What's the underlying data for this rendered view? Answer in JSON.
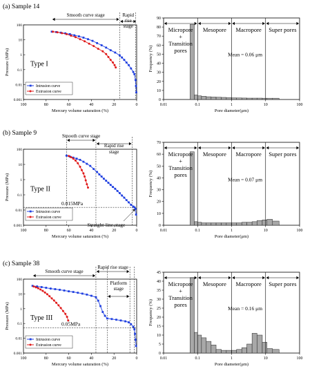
{
  "chart_data": [
    {
      "type": "line",
      "panel_label": "(a) Sample 14",
      "xlabel": "Mercury volume saturation (%)",
      "ylabel": "Pressure (MPa)",
      "xlim": [
        100,
        0
      ],
      "ylim": [
        0.001,
        100
      ],
      "yscale": "log",
      "x_ticks": [
        "100",
        "80",
        "60",
        "40",
        "20",
        "0"
      ],
      "y_ticks": [
        "0.001",
        "0.01",
        "0.1",
        "1",
        "10",
        "100"
      ],
      "type_label": "Type I",
      "legend_position": "bottom-left",
      "stage_labels": [
        {
          "text": "Smooth curve stage",
          "from": 75,
          "to": 15
        },
        {
          "text": "Rapid",
          "from": 15,
          "to": 0
        },
        {
          "text": "rise",
          "from": 15,
          "to": 0
        },
        {
          "text": "stage",
          "from": 15,
          "to": 0
        }
      ],
      "stage_lines": [
        15,
        1
      ],
      "series": [
        {
          "name": "Intrusion curve",
          "color": "#1f3fe0",
          "marker": "square",
          "x": [
            75,
            71,
            67,
            63,
            59,
            55,
            51,
            47,
            43,
            39,
            35,
            31,
            27,
            23,
            19,
            15,
            13,
            11,
            9,
            7,
            5,
            3,
            2,
            1,
            0.6,
            0.3
          ],
          "y": [
            35,
            33,
            30,
            27,
            24,
            20,
            17,
            14,
            11,
            8.5,
            6,
            4.3,
            3,
            2,
            1.4,
            0.9,
            0.65,
            0.45,
            0.3,
            0.2,
            0.12,
            0.07,
            0.05,
            0.02,
            0.008,
            0.003
          ]
        },
        {
          "name": "Extrusion curve",
          "color": "#e01a1a",
          "marker": "circle",
          "x": [
            74,
            70,
            66,
            62,
            58,
            54,
            50,
            46,
            42,
            38,
            34,
            30,
            27,
            25,
            23,
            21,
            19.5,
            18.5
          ],
          "y": [
            35,
            32,
            28,
            24,
            19,
            15,
            11,
            8,
            5.5,
            3.8,
            2.5,
            1.7,
            1.1,
            0.7,
            0.45,
            0.3,
            0.2,
            0.14
          ]
        }
      ]
    },
    {
      "type": "bar",
      "xlabel": "Pore diameter(μm)",
      "ylabel": "Frequency (%)",
      "xscale": "log",
      "xlim": [
        0.01,
        100
      ],
      "ylim": [
        0,
        90
      ],
      "x_ticks": [
        "0.01",
        "0.1",
        "1",
        "10",
        "100"
      ],
      "y_ticks": [
        "0",
        "10",
        "20",
        "30",
        "40",
        "50",
        "60",
        "70",
        "80",
        "90"
      ],
      "bin_edges": [
        0.06,
        0.08,
        0.1,
        0.13,
        0.18,
        0.25,
        0.35,
        0.5,
        0.7,
        1,
        1.4,
        2,
        2.8,
        4,
        5.6,
        8,
        11,
        16,
        25
      ],
      "values": [
        83,
        5,
        4,
        3.5,
        3,
        2.7,
        2.5,
        2.3,
        2,
        1.8,
        1.7,
        1.6,
        1.5,
        1.5,
        1.5,
        1.4,
        1.4,
        1.4
      ],
      "regions": [
        {
          "lines": [
            "Micropore",
            "+",
            "Transition",
            "pores"
          ],
          "from": 0.01,
          "to": 0.1
        },
        {
          "lines": [
            "Mesopore"
          ],
          "from": 0.1,
          "to": 1
        },
        {
          "lines": [
            "Macropore"
          ],
          "from": 1,
          "to": 10
        },
        {
          "lines": [
            "Super pores"
          ],
          "from": 10,
          "to": 100
        }
      ],
      "mean_label": "Mean = 0.06 μm"
    },
    {
      "type": "line",
      "panel_label": "(b) Sample 9",
      "xlabel": "Mercury volume saturation (%)",
      "ylabel": "Pressure (MPa)",
      "xlim": [
        100,
        0
      ],
      "ylim": [
        0.001,
        100
      ],
      "yscale": "log",
      "x_ticks": [
        "100",
        "80",
        "60",
        "40",
        "20",
        "0"
      ],
      "y_ticks": [
        "0.001",
        "0.01",
        "0.1",
        "1",
        "10",
        "100"
      ],
      "type_label": "Type II",
      "legend_position": "bottom-left",
      "stage_labels": [
        {
          "text": "Smooth curve stage",
          "from": 62,
          "to": 36
        },
        {
          "text": "Rapid rise",
          "from": 36,
          "to": 4
        },
        {
          "text": "stage",
          "from": 36,
          "to": 4
        }
      ],
      "stage_lines": [
        62,
        36,
        4
      ],
      "threshold": {
        "y": 0.015,
        "label": "0.015MPa"
      },
      "annotation": {
        "text": "Straight-line stage",
        "target": [
          1,
          0.012
        ]
      },
      "series": [
        {
          "name": "Intrusion curve",
          "color": "#1f3fe0",
          "marker": "square",
          "x": [
            62,
            59,
            56,
            53,
            50,
            47,
            44,
            41,
            38,
            35,
            33,
            31,
            29,
            27,
            25,
            23,
            21,
            19,
            17,
            15,
            13,
            11,
            9,
            7,
            5,
            3,
            2,
            1,
            0.5
          ],
          "y": [
            38,
            33,
            28,
            24,
            20,
            15,
            11,
            8,
            5,
            3.2,
            2.2,
            1.6,
            1.15,
            0.85,
            0.62,
            0.45,
            0.33,
            0.25,
            0.18,
            0.13,
            0.09,
            0.065,
            0.045,
            0.032,
            0.022,
            0.017,
            0.015,
            0.012,
            0.005
          ]
        },
        {
          "name": "Extrusion curve",
          "color": "#e01a1a",
          "marker": "circle",
          "x": [
            60,
            58,
            56,
            54,
            52,
            50,
            48.5,
            47,
            46,
            45,
            44,
            43
          ],
          "y": [
            36,
            30,
            24,
            18,
            12,
            7,
            4.2,
            2.6,
            1.6,
            0.9,
            0.5,
            0.3
          ]
        }
      ]
    },
    {
      "type": "bar",
      "xlabel": "Pore diameter(μm)",
      "ylabel": "Frequency (%)",
      "xscale": "log",
      "xlim": [
        0.01,
        100
      ],
      "ylim": [
        0,
        70
      ],
      "x_ticks": [
        "0.01",
        "0.1",
        "1",
        "10",
        "100"
      ],
      "y_ticks": [
        "0",
        "10",
        "20",
        "30",
        "40",
        "50",
        "60",
        "70"
      ],
      "bin_edges": [
        0.06,
        0.08,
        0.1,
        0.13,
        0.18,
        0.25,
        0.35,
        0.5,
        0.7,
        1,
        1.4,
        2,
        2.8,
        4,
        5.6,
        8,
        11,
        16,
        25
      ],
      "values": [
        62,
        3,
        2.5,
        2,
        2,
        2,
        2,
        2,
        2,
        2,
        2,
        2.5,
        2.5,
        3,
        4,
        4.5,
        5,
        3.5
      ],
      "regions": [
        {
          "lines": [
            "Micropore",
            "+",
            "Transition",
            "pores"
          ],
          "from": 0.01,
          "to": 0.1
        },
        {
          "lines": [
            "Mesopore"
          ],
          "from": 0.1,
          "to": 1
        },
        {
          "lines": [
            "Macropore"
          ],
          "from": 1,
          "to": 10
        },
        {
          "lines": [
            "Super pores"
          ],
          "from": 10,
          "to": 100
        }
      ],
      "mean_label": "Mean = 0.07 μm"
    },
    {
      "type": "line",
      "panel_label": "(c) Sample 38",
      "xlabel": "Mercury volume saturation (%)",
      "ylabel": "Pressure (MPa)",
      "xlim": [
        100,
        0
      ],
      "ylim": [
        0.001,
        100
      ],
      "yscale": "log",
      "x_ticks": [
        "100",
        "80",
        "60",
        "40",
        "20",
        "0"
      ],
      "y_ticks": [
        "0.001",
        "0.01",
        "0.1",
        "1",
        "10",
        "100"
      ],
      "type_label": "Type III",
      "legend_position": "bottom-left",
      "stage_labels": [
        {
          "text": "Smooth curve stage",
          "from": 92,
          "to": 36
        },
        {
          "text": "Rapid rise stage",
          "from": 36,
          "to": 6
        },
        {
          "text": "Platform",
          "from": 26,
          "to": 6
        },
        {
          "text": "stage",
          "from": 26,
          "to": 6
        }
      ],
      "stage_lines": [
        36,
        26,
        6,
        2
      ],
      "threshold": {
        "y": 0.05,
        "label": "0.05MPa"
      },
      "series": [
        {
          "name": "Intrusion curve",
          "color": "#1f3fe0",
          "marker": "square",
          "x": [
            92,
            88,
            84,
            80,
            76,
            72,
            68,
            64,
            60,
            56,
            52,
            48,
            44,
            40,
            36,
            34,
            32,
            30,
            28,
            26,
            22,
            18,
            14,
            10,
            7,
            5,
            3,
            2,
            1.5,
            1,
            0.5
          ],
          "y": [
            35,
            32,
            29,
            26,
            23,
            21,
            19,
            17,
            15,
            13.5,
            12,
            10.5,
            9,
            7.5,
            6,
            3.5,
            1.5,
            0.6,
            0.33,
            0.22,
            0.2,
            0.18,
            0.16,
            0.14,
            0.12,
            0.09,
            0.06,
            0.04,
            0.02,
            0.008,
            0.003
          ]
        },
        {
          "name": "Extrusion curve",
          "color": "#e01a1a",
          "marker": "circle",
          "x": [
            91,
            89,
            87,
            85,
            83,
            81,
            79,
            77,
            75,
            73,
            71,
            69,
            67,
            65,
            63,
            61.5,
            60.5
          ],
          "y": [
            32,
            28,
            24,
            20,
            16,
            12.5,
            9.5,
            7,
            5,
            3.6,
            2.5,
            1.7,
            1.1,
            0.7,
            0.45,
            0.28,
            0.16
          ]
        }
      ]
    },
    {
      "type": "bar",
      "xlabel": "Pore diameter(μm)",
      "ylabel": "Frequency (%)",
      "xscale": "log",
      "xlim": [
        0.01,
        100
      ],
      "ylim": [
        0,
        45
      ],
      "x_ticks": [
        "0.01",
        "0.1",
        "1",
        "10",
        "100"
      ],
      "y_ticks": [
        "0",
        "5",
        "10",
        "15",
        "20",
        "25",
        "30",
        "35",
        "40",
        "45"
      ],
      "bin_edges": [
        0.06,
        0.08,
        0.1,
        0.13,
        0.18,
        0.25,
        0.35,
        0.5,
        0.7,
        1,
        1.4,
        2,
        2.8,
        4,
        5.6,
        8,
        11,
        16,
        25
      ],
      "values": [
        42,
        11.5,
        10,
        8.5,
        6.5,
        4.5,
        2,
        1.5,
        1.5,
        1.5,
        2,
        3,
        5,
        11,
        10,
        6,
        2.5,
        2
      ],
      "regions": [
        {
          "lines": [
            "Micropore",
            "+",
            "Transition",
            "pores"
          ],
          "from": 0.01,
          "to": 0.1
        },
        {
          "lines": [
            "Mesopore"
          ],
          "from": 0.1,
          "to": 1
        },
        {
          "lines": [
            "Macropore"
          ],
          "from": 1,
          "to": 10
        },
        {
          "lines": [
            "Super pores"
          ],
          "from": 10,
          "to": 100
        }
      ],
      "mean_label": "Mean = 0.16 μm"
    }
  ]
}
